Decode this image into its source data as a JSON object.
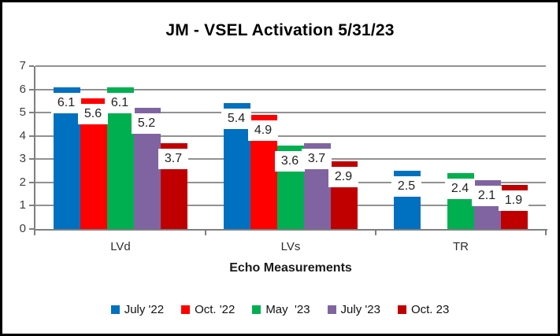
{
  "chart_data": {
    "type": "bar",
    "title": "JM - VSEL Activation 5/31/23",
    "xlabel": "Echo Measurements",
    "ylabel": "",
    "categories": [
      "LVd",
      "LVs",
      "TR"
    ],
    "series": [
      {
        "name": "July '22",
        "color": "#0070C0",
        "values": [
          6.1,
          5.4,
          2.5
        ]
      },
      {
        "name": "Oct. '22",
        "color": "#FF0000",
        "values": [
          5.6,
          4.9,
          null
        ]
      },
      {
        "name": "May  '23",
        "color": "#00B050",
        "values": [
          6.1,
          3.6,
          2.4
        ]
      },
      {
        "name": "July '23",
        "color": "#8064A2",
        "values": [
          5.2,
          3.7,
          2.1
        ]
      },
      {
        "name": "Oct. 23",
        "color": "#C00000",
        "values": [
          3.7,
          2.9,
          1.9
        ]
      }
    ],
    "data_labels": [
      [
        "6.1",
        "5.4",
        "2.5"
      ],
      [
        "5.6",
        "4.9",
        null
      ],
      [
        "6.1",
        "3.6",
        "2.4"
      ],
      [
        "5.2",
        "3.7",
        "2.1"
      ],
      [
        "3.7",
        "2.9",
        "1.9"
      ]
    ],
    "ylim": [
      0,
      7
    ],
    "yticks": [
      0,
      1,
      2,
      3,
      4,
      5,
      6,
      7
    ],
    "grid": true,
    "legend_position": "bottom",
    "gridline_color": "#919191",
    "axis_color": "#7f7f7f",
    "label_text_color": "#1f1f1f"
  }
}
